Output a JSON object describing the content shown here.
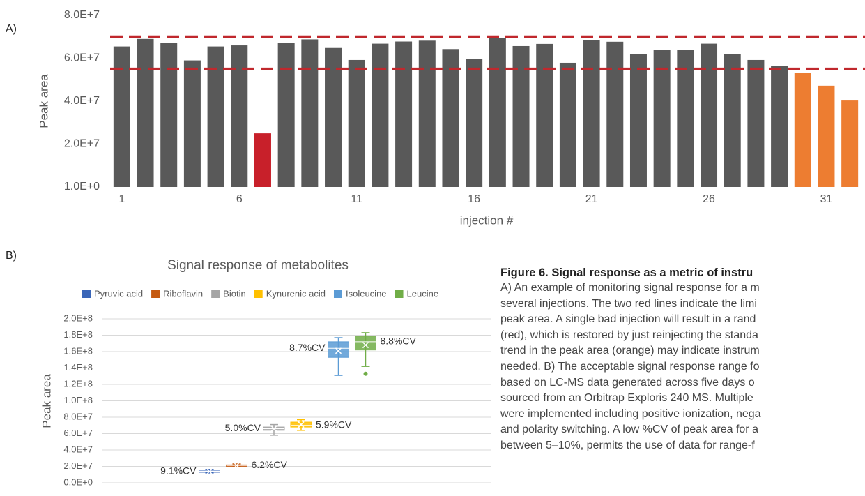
{
  "chart_data": [
    {
      "type": "bar",
      "panel_label": "A)",
      "x_label": "injection #",
      "y_label": "Peak area",
      "categories": [
        "1",
        null,
        null,
        null,
        null,
        "6",
        null,
        null,
        null,
        null,
        "11",
        null,
        null,
        null,
        null,
        "16",
        null,
        null,
        null,
        null,
        "21",
        null,
        null,
        null,
        null,
        "26",
        null,
        null,
        null,
        null,
        "31",
        null
      ],
      "values": [
        65500000,
        69000000,
        67000000,
        59000000,
        65500000,
        66000000,
        25000000,
        67000000,
        68800000,
        64800000,
        59200000,
        66800000,
        67800000,
        68200000,
        64300000,
        59800000,
        69500000,
        65700000,
        66700000,
        57900000,
        68400000,
        67700000,
        61800000,
        64000000,
        64000000,
        66800000,
        61800000,
        59200000,
        56300000,
        53300000,
        47200000,
        40300000
      ],
      "colors": [
        "#595959",
        "#595959",
        "#595959",
        "#595959",
        "#595959",
        "#595959",
        "#c8202a",
        "#595959",
        "#595959",
        "#595959",
        "#595959",
        "#595959",
        "#595959",
        "#595959",
        "#595959",
        "#595959",
        "#595959",
        "#595959",
        "#595959",
        "#595959",
        "#595959",
        "#595959",
        "#595959",
        "#595959",
        "#595959",
        "#595959",
        "#595959",
        "#595959",
        "#595959",
        "#ed7d31",
        "#ed7d31",
        "#ed7d31"
      ],
      "ylim": [
        1,
        80000000
      ],
      "yticks": [
        {
          "value": 1,
          "label": "1.0E+0"
        },
        {
          "value": 20000000,
          "label": "2.0E+7"
        },
        {
          "value": 40000000,
          "label": "4.0E+7"
        },
        {
          "value": 60000000,
          "label": "6.0E+7"
        },
        {
          "value": 80000000,
          "label": "8.0E+7"
        }
      ],
      "grid": false,
      "reference_lines": [
        70000000,
        55000000
      ],
      "reference_color": "#c0282d"
    },
    {
      "type": "box",
      "panel_label": "B)",
      "title": "Signal response of metabolites",
      "y_label": "Peak area",
      "categories": [
        null,
        null,
        null
      ],
      "series": [
        {
          "name": "Pyruvic acid",
          "color": "#3a66b8",
          "min": 12000000,
          "q1": 13000000,
          "median": 14000000,
          "q3": 14500000,
          "max": 16000000,
          "mean": 13800000,
          "outliers": [],
          "label": "9.1%CV"
        },
        {
          "name": "Riboflavin",
          "color": "#c55a11",
          "min": 20000000,
          "q1": 20800000,
          "median": 21200000,
          "q3": 21800000,
          "max": 23000000,
          "mean": 21300000,
          "outliers": [],
          "label": "6.2%CV"
        },
        {
          "name": "Biotin",
          "color": "#a5a5a5",
          "min": 58000000,
          "q1": 64000000,
          "median": 66000000,
          "q3": 68000000,
          "max": 71000000,
          "mean": 66000000,
          "outliers": [],
          "label": "5.0%CV"
        },
        {
          "name": "Kynurenic acid",
          "color": "#ffc000",
          "min": 64000000,
          "q1": 68000000,
          "median": 70000000,
          "q3": 74000000,
          "max": 77000000,
          "mean": 71000000,
          "outliers": [],
          "label": "5.9%CV"
        },
        {
          "name": "Isoleucine",
          "color": "#5b9bd5",
          "min": 131000000,
          "q1": 153000000,
          "median": 164000000,
          "q3": 172000000,
          "max": 177000000,
          "mean": 161000000,
          "outliers": [],
          "label": "8.7%CV"
        },
        {
          "name": "Leucine",
          "color": "#70ad47",
          "min": 142000000,
          "q1": 162000000,
          "median": 172000000,
          "q3": 179000000,
          "max": 183000000,
          "mean": 168000000,
          "outliers": [
            133000000
          ],
          "label": "8.8%CV"
        }
      ],
      "ylim": [
        0,
        200000000
      ],
      "yticks": [
        {
          "value": 0,
          "label": "0.0E+0"
        },
        {
          "value": 20000000,
          "label": "2.0E+7"
        },
        {
          "value": 40000000,
          "label": "4.0E+7"
        },
        {
          "value": 60000000,
          "label": "6.0E+7"
        },
        {
          "value": 80000000,
          "label": "8.0E+7"
        },
        {
          "value": 100000000,
          "label": "1.0E+8"
        },
        {
          "value": 120000000,
          "label": "1.2E+8"
        },
        {
          "value": 140000000,
          "label": "1.4E+8"
        },
        {
          "value": 160000000,
          "label": "1.6E+8"
        },
        {
          "value": 180000000,
          "label": "1.8E+8"
        },
        {
          "value": 200000000,
          "label": "2.0E+8"
        }
      ],
      "grid": true
    }
  ],
  "caption": {
    "title": "Figure 6. Signal response as a metric of instru",
    "lines": [
      "A) An example of monitoring signal response for a m",
      "several injections. The two red lines indicate the limi",
      "peak area. A single bad injection will result in a rand",
      "(red), which is restored by just reinjecting the standa",
      "trend in the peak area (orange) may indicate instrum",
      "needed. B) The acceptable signal response range fo",
      "based on LC-MS data generated across five days o",
      "sourced from an Orbitrap Exploris 240 MS. Multiple",
      "were implemented including positive ionization, nega",
      "and polarity switching. A low %CV of peak area for a",
      "between 5–10%, permits the use of data for range-f"
    ]
  }
}
